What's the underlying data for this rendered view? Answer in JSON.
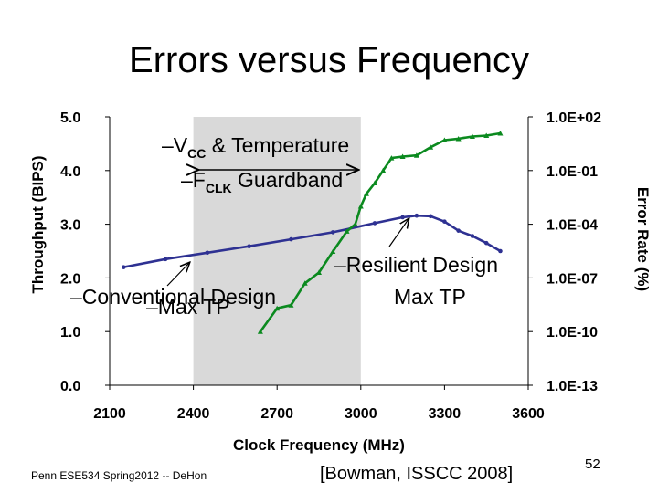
{
  "slide": {
    "title": "Errors versus Frequency",
    "footer": "Penn ESE534 Spring2012 -- DeHon",
    "citation": "[Bowman, ISSCC 2008]",
    "page_number": "52"
  },
  "chart_data": {
    "type": "line",
    "xlabel": "Clock Frequency (MHz)",
    "ylabel": "Throughput (BIPS)",
    "y2label": "Error Rate (%)",
    "xlim": [
      2100,
      3600
    ],
    "ylim": [
      0,
      5
    ],
    "y2lim": [
      1e-13,
      100
    ],
    "y2scale": "log",
    "grid": false,
    "x_ticks": [
      "2100",
      "2400",
      "2700",
      "3000",
      "3300",
      "3600"
    ],
    "y_ticks": [
      "0.0",
      "1.0",
      "2.0",
      "3.0",
      "4.0",
      "5.0"
    ],
    "y2_ticks": [
      "1.0E-13",
      "1.0E-10",
      "1.0E-07",
      "1.0E-04",
      "1.0E-01",
      "1.0E+02"
    ],
    "shaded_region": {
      "x": [
        2400,
        3000
      ],
      "color": "#d9d9d9"
    },
    "series": [
      {
        "axis": "left",
        "color": "#2e3192",
        "x": [
          2150,
          2300,
          2450,
          2600,
          2750,
          2900,
          3050,
          3150,
          3200,
          3250,
          3300,
          3350,
          3400,
          3450,
          3500
        ],
        "y": [
          2.2,
          2.35,
          2.47,
          2.59,
          2.72,
          2.85,
          3.02,
          3.13,
          3.16,
          3.15,
          3.05,
          2.88,
          2.78,
          2.65,
          2.5
        ]
      },
      {
        "axis": "right",
        "color": "#0b8a1f",
        "x": [
          2640,
          2700,
          2750,
          2800,
          2850,
          2900,
          2950,
          2980,
          3000,
          3020,
          3050,
          3080,
          3110,
          3150,
          3200,
          3250,
          3300,
          3350,
          3400,
          3450,
          3500
        ],
        "y": [
          1e-10,
          2e-09,
          3e-09,
          5e-08,
          2e-07,
          3e-06,
          4e-05,
          0.0001,
          0.001,
          0.005,
          0.02,
          0.1,
          0.5,
          0.6,
          0.7,
          2,
          5,
          6,
          8,
          9,
          12
        ]
      }
    ],
    "annotations": [
      {
        "kind": "range",
        "text1": "–V",
        "sub": "CC",
        "text2": " & Temperature"
      },
      {
        "kind": "range",
        "text1": "–F",
        "sub": "CLK",
        "text2": " Guardband"
      },
      {
        "kind": "arrow",
        "text": "–Conventional Design"
      },
      {
        "kind": "arrow",
        "text": "–Max TP"
      },
      {
        "kind": "arrow",
        "text": "–Resilient Design"
      },
      {
        "kind": "arrow",
        "text": "Max TP"
      }
    ]
  }
}
